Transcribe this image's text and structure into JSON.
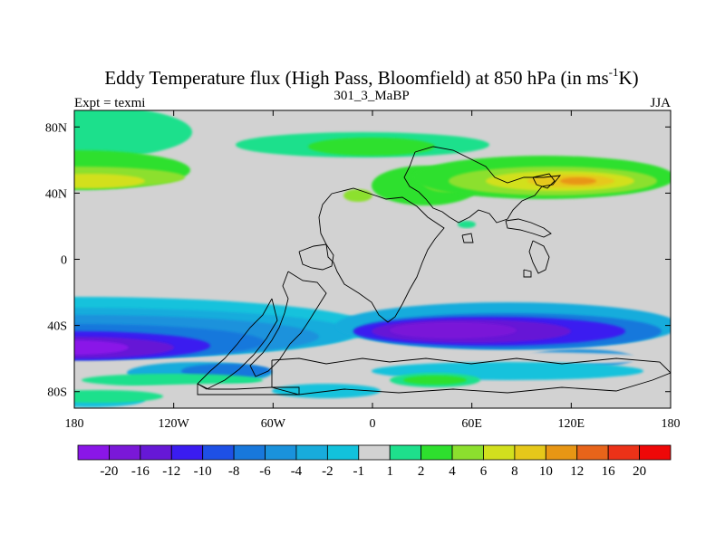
{
  "chart_data": {
    "type": "heatmap",
    "title_main": "Eddy Temperature flux (High Pass, Bloomfield) at 850 hPa (in ms",
    "title_sup": "-1",
    "title_end": "K)",
    "left_label": "Expt = texmi",
    "center_label": "301_3_MaBP",
    "right_label": "JJA",
    "x_range": [
      -180,
      180
    ],
    "y_range": [
      -90,
      90
    ],
    "x_ticks": [
      {
        "value": -180,
        "label": "180"
      },
      {
        "value": -120,
        "label": "120W"
      },
      {
        "value": -60,
        "label": "60W"
      },
      {
        "value": 0,
        "label": "0"
      },
      {
        "value": 60,
        "label": "60E"
      },
      {
        "value": 120,
        "label": "120E"
      },
      {
        "value": 180,
        "label": "180"
      }
    ],
    "y_ticks": [
      {
        "value": 80,
        "label": "80N"
      },
      {
        "value": 40,
        "label": "40N"
      },
      {
        "value": 0,
        "label": "0"
      },
      {
        "value": -40,
        "label": "40S"
      },
      {
        "value": -80,
        "label": "80S"
      }
    ],
    "levels": [
      "-20",
      "-16",
      "-12",
      "-10",
      "-8",
      "-6",
      "-4",
      "-2",
      "-1",
      "1",
      "2",
      "4",
      "6",
      "8",
      "10",
      "12",
      "16",
      "20"
    ],
    "colors": [
      "#8a16e8",
      "#7a18d8",
      "#6618d6",
      "#3a1cf0",
      "#1e50e6",
      "#1878dc",
      "#1a92dc",
      "#18acdc",
      "#12c2dc",
      "#d2d2d2",
      "#1ee08c",
      "#2ee02e",
      "#8ce02e",
      "#d2e01e",
      "#e6c81a",
      "#e89614",
      "#e8641a",
      "#ec3218",
      "#ee0808"
    ],
    "background_color": "#d2d2d2",
    "coastline_color": "#000000"
  }
}
